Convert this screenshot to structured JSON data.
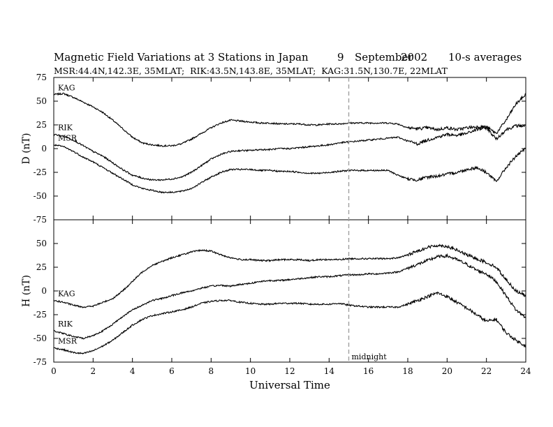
{
  "header": {
    "title": "Magnetic Field Variations at 3 Stations in Japan",
    "date_day": "9",
    "date_month": "September",
    "date_year": "2002",
    "averaging": "10-s averages",
    "stations": "MSR:44.4N,142.3E, 35MLAT;  RIK:43.5N,143.8E, 35MLAT;  KAG:31.5N,130.7E, 22MLAT"
  },
  "colors": {
    "trace": "#000000",
    "midnight_line": "#a0a0a0"
  },
  "chart_data": {
    "type": "line",
    "xlabel": "Universal Time",
    "xlim": [
      0,
      24
    ],
    "x_ticks": [
      0,
      2,
      4,
      6,
      8,
      10,
      12,
      14,
      16,
      18,
      20,
      22,
      24
    ],
    "grid": false,
    "annotation": {
      "x": 15,
      "label": "midnight",
      "style": "dashed-vertical"
    },
    "panels": [
      {
        "ylabel": "D (nT)",
        "ylim": [
          -75,
          75
        ],
        "y_ticks": [
          75,
          50,
          25,
          0,
          -25,
          -50,
          -75
        ],
        "series": [
          {
            "name": "KAG",
            "x": [
              0,
              0.5,
              1,
              1.5,
              2,
              2.5,
              3,
              3.5,
              4,
              4.5,
              5,
              5.5,
              6,
              6.5,
              7,
              7.5,
              8,
              8.5,
              9,
              9.5,
              10,
              10.5,
              11,
              11.5,
              12,
              12.5,
              13,
              13.5,
              14,
              14.5,
              15,
              15.5,
              16,
              16.5,
              17,
              17.5,
              18,
              18.5,
              19,
              19.5,
              20,
              20.5,
              21,
              21.5,
              22,
              22.5,
              23,
              23.5,
              24
            ],
            "values": [
              57,
              58,
              54,
              49,
              44,
              38,
              30,
              21,
              12,
              6,
              4,
              3,
              3,
              5,
              10,
              16,
              22,
              27,
              30,
              29,
              28,
              27,
              27,
              26,
              26,
              26,
              25,
              25,
              26,
              26,
              27,
              27,
              27,
              27,
              27,
              26,
              22,
              21,
              22,
              20,
              22,
              20,
              22,
              23,
              23,
              16,
              30,
              47,
              57
            ]
          },
          {
            "name": "RIK",
            "x": [
              0,
              0.5,
              1,
              1.5,
              2,
              2.5,
              3,
              3.5,
              4,
              4.5,
              5,
              5.5,
              6,
              6.5,
              7,
              7.5,
              8,
              8.5,
              9,
              9.5,
              10,
              10.5,
              11,
              11.5,
              12,
              12.5,
              13,
              13.5,
              14,
              14.5,
              15,
              15.5,
              16,
              16.5,
              17,
              17.5,
              18,
              18.5,
              19,
              19.5,
              20,
              20.5,
              21,
              21.5,
              22,
              22.5,
              23,
              23.5,
              24
            ],
            "values": [
              15,
              13,
              9,
              3,
              -3,
              -8,
              -15,
              -22,
              -28,
              -31,
              -33,
              -33,
              -32,
              -30,
              -25,
              -18,
              -11,
              -6,
              -3,
              -2,
              -2,
              -1,
              -1,
              0,
              0,
              1,
              2,
              3,
              4,
              6,
              7,
              8,
              9,
              10,
              11,
              12,
              8,
              5,
              9,
              12,
              15,
              14,
              16,
              20,
              22,
              10,
              20,
              24,
              24
            ]
          },
          {
            "name": "MSR",
            "x": [
              0,
              0.5,
              1,
              1.5,
              2,
              2.5,
              3,
              3.5,
              4,
              4.5,
              5,
              5.5,
              6,
              6.5,
              7,
              7.5,
              8,
              8.5,
              9,
              9.5,
              10,
              10.5,
              11,
              11.5,
              12,
              12.5,
              13,
              13.5,
              14,
              14.5,
              15,
              15.5,
              16,
              16.5,
              17,
              17.5,
              18,
              18.5,
              19,
              19.5,
              20,
              20.5,
              21,
              21.5,
              22,
              22.5,
              23,
              23.5,
              24
            ],
            "values": [
              4,
              2,
              -3,
              -9,
              -14,
              -20,
              -26,
              -32,
              -38,
              -42,
              -44,
              -46,
              -46,
              -45,
              -42,
              -36,
              -30,
              -25,
              -22,
              -22,
              -22,
              -23,
              -23,
              -24,
              -24,
              -25,
              -26,
              -26,
              -25,
              -24,
              -23,
              -23,
              -23,
              -23,
              -23,
              -28,
              -32,
              -33,
              -30,
              -29,
              -27,
              -25,
              -22,
              -20,
              -25,
              -35,
              -20,
              -8,
              0
            ]
          }
        ]
      },
      {
        "ylabel": "H (nT)",
        "ylim": [
          -75,
          75
        ],
        "y_ticks": [
          75,
          50,
          25,
          0,
          -25,
          -50,
          -75
        ],
        "series": [
          {
            "name": "KAG",
            "x": [
              0,
              0.5,
              1,
              1.5,
              2,
              2.5,
              3,
              3.5,
              4,
              4.5,
              5,
              5.5,
              6,
              6.5,
              7,
              7.5,
              8,
              8.5,
              9,
              9.5,
              10,
              10.5,
              11,
              11.5,
              12,
              12.5,
              13,
              13.5,
              14,
              14.5,
              15,
              15.5,
              16,
              16.5,
              17,
              17.5,
              18,
              18.5,
              19,
              19.5,
              20,
              20.5,
              21,
              21.5,
              22,
              22.5,
              23,
              23.5,
              24
            ],
            "values": [
              -10,
              -12,
              -15,
              -17,
              -16,
              -12,
              -8,
              0,
              10,
              20,
              27,
              31,
              35,
              38,
              41,
              43,
              42,
              38,
              35,
              33,
              33,
              32,
              32,
              33,
              33,
              33,
              32,
              33,
              33,
              33,
              34,
              34,
              34,
              34,
              34,
              35,
              38,
              42,
              46,
              48,
              47,
              43,
              38,
              34,
              30,
              25,
              12,
              0,
              -5
            ]
          },
          {
            "name": "RIK",
            "x": [
              0,
              0.5,
              1,
              1.5,
              2,
              2.5,
              3,
              3.5,
              4,
              4.5,
              5,
              5.5,
              6,
              6.5,
              7,
              7.5,
              8,
              8.5,
              9,
              9.5,
              10,
              10.5,
              11,
              11.5,
              12,
              12.5,
              13,
              13.5,
              14,
              14.5,
              15,
              15.5,
              16,
              16.5,
              17,
              17.5,
              18,
              18.5,
              19,
              19.5,
              20,
              20.5,
              21,
              21.5,
              22,
              22.5,
              23,
              23.5,
              24
            ],
            "values": [
              -42,
              -45,
              -48,
              -50,
              -47,
              -42,
              -35,
              -27,
              -20,
              -15,
              -10,
              -8,
              -5,
              -2,
              0,
              3,
              5,
              6,
              5,
              7,
              8,
              10,
              11,
              11,
              12,
              13,
              14,
              15,
              15,
              16,
              17,
              17,
              18,
              18,
              19,
              20,
              24,
              28,
              32,
              36,
              37,
              33,
              28,
              22,
              18,
              10,
              -5,
              -20,
              -28
            ]
          },
          {
            "name": "MSR",
            "x": [
              0,
              0.5,
              1,
              1.5,
              2,
              2.5,
              3,
              3.5,
              4,
              4.5,
              5,
              5.5,
              6,
              6.5,
              7,
              7.5,
              8,
              8.5,
              9,
              9.5,
              10,
              10.5,
              11,
              11.5,
              12,
              12.5,
              13,
              13.5,
              14,
              14.5,
              15,
              15.5,
              16,
              16.5,
              17,
              17.5,
              18,
              18.5,
              19,
              19.5,
              20,
              20.5,
              21,
              21.5,
              22,
              22.5,
              23,
              23.5,
              24
            ],
            "values": [
              -60,
              -62,
              -65,
              -66,
              -63,
              -58,
              -52,
              -44,
              -36,
              -30,
              -26,
              -24,
              -22,
              -20,
              -17,
              -13,
              -11,
              -10,
              -10,
              -12,
              -13,
              -14,
              -14,
              -13,
              -13,
              -13,
              -14,
              -14,
              -14,
              -13,
              -15,
              -16,
              -17,
              -17,
              -17,
              -17,
              -14,
              -10,
              -6,
              -2,
              -6,
              -12,
              -18,
              -25,
              -32,
              -30,
              -44,
              -52,
              -58
            ]
          }
        ]
      }
    ]
  }
}
